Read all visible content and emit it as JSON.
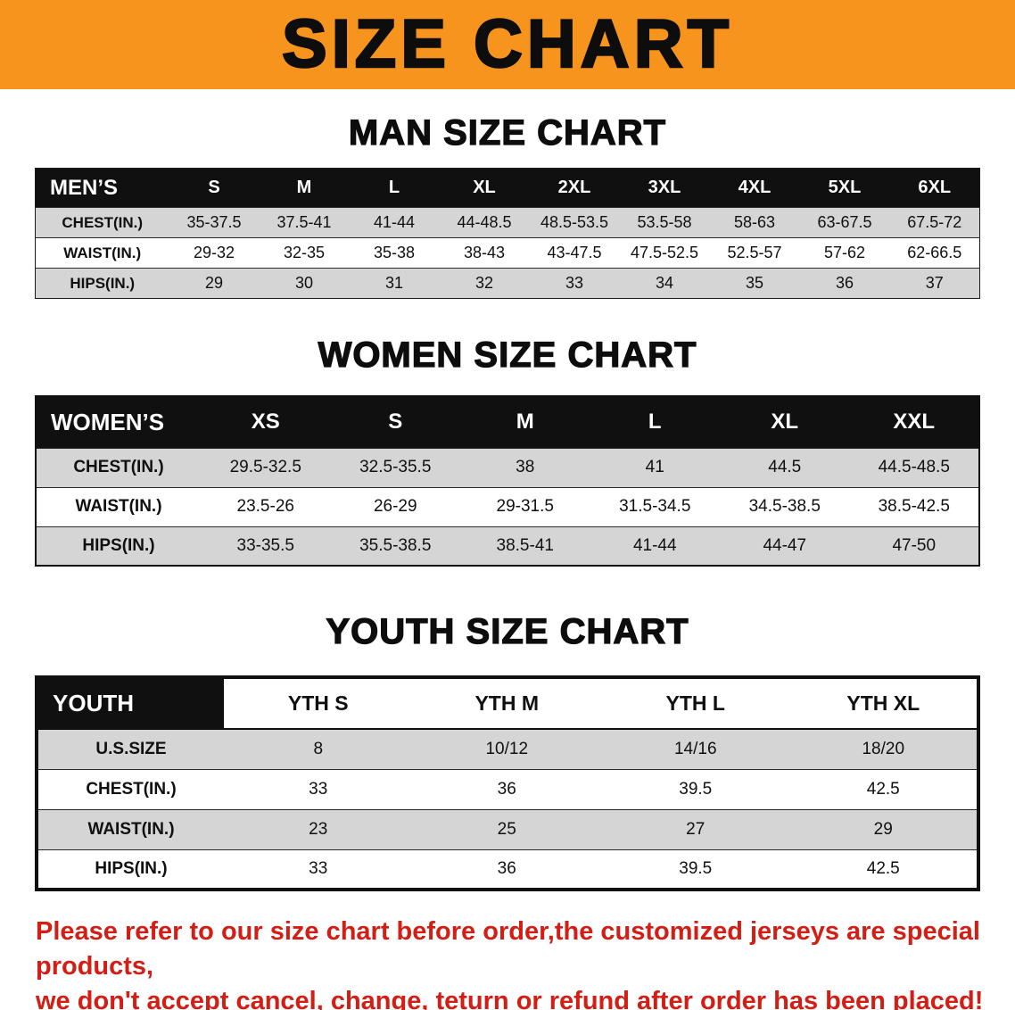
{
  "banner": {
    "title": "SIZE CHART"
  },
  "colors": {
    "banner_bg": "#F7941E",
    "table_header_bg": "#101010",
    "row_alt_gray": "#d5d5d5",
    "note_red": "#d21e14"
  },
  "sections": [
    {
      "id": "men",
      "heading": "MAN SIZE CHART",
      "table": {
        "label": "MEN’S",
        "columns": [
          "S",
          "M",
          "L",
          "XL",
          "2XL",
          "3XL",
          "4XL",
          "5XL",
          "6XL"
        ],
        "rows": [
          {
            "label": "CHEST(IN.)",
            "values": [
              "35-37.5",
              "37.5-41",
              "41-44",
              "44-48.5",
              "48.5-53.5",
              "53.5-58",
              "58-63",
              "63-67.5",
              "67.5-72"
            ]
          },
          {
            "label": "WAIST(IN.)",
            "values": [
              "29-32",
              "32-35",
              "35-38",
              "38-43",
              "43-47.5",
              "47.5-52.5",
              "52.5-57",
              "57-62",
              "62-66.5"
            ]
          },
          {
            "label": "HIPS(IN.)",
            "values": [
              "29",
              "30",
              "31",
              "32",
              "33",
              "34",
              "35",
              "36",
              "37"
            ]
          }
        ]
      }
    },
    {
      "id": "women",
      "heading": "WOMEN SIZE CHART",
      "table": {
        "label": "WOMEN’S",
        "columns": [
          "XS",
          "S",
          "M",
          "L",
          "XL",
          "XXL"
        ],
        "rows": [
          {
            "label": "CHEST(IN.)",
            "values": [
              "29.5-32.5",
              "32.5-35.5",
              "38",
              "41",
              "44.5",
              "44.5-48.5"
            ]
          },
          {
            "label": "WAIST(IN.)",
            "values": [
              "23.5-26",
              "26-29",
              "29-31.5",
              "31.5-34.5",
              "34.5-38.5",
              "38.5-42.5"
            ]
          },
          {
            "label": "HIPS(IN.)",
            "values": [
              "33-35.5",
              "35.5-38.5",
              "38.5-41",
              "41-44",
              "44-47",
              "47-50"
            ]
          }
        ]
      }
    },
    {
      "id": "youth",
      "heading": "YOUTH SIZE CHART",
      "table": {
        "label": "YOUTH",
        "columns": [
          "YTH S",
          "YTH M",
          "YTH L",
          "YTH XL"
        ],
        "rows": [
          {
            "label": "U.S.SIZE",
            "values": [
              "8",
              "10/12",
              "14/16",
              "18/20"
            ]
          },
          {
            "label": "CHEST(IN.)",
            "values": [
              "33",
              "36",
              "39.5",
              "42.5"
            ]
          },
          {
            "label": "WAIST(IN.)",
            "values": [
              "23",
              "25",
              "27",
              "29"
            ]
          },
          {
            "label": "HIPS(IN.)",
            "values": [
              "33",
              "36",
              "39.5",
              "42.5"
            ]
          }
        ]
      }
    }
  ],
  "note": {
    "line1": "Please refer to our size chart before order,the customized jerseys are special products,",
    "line2": "we don't accept cancel, change, teturn or refund after order has been placed!"
  }
}
